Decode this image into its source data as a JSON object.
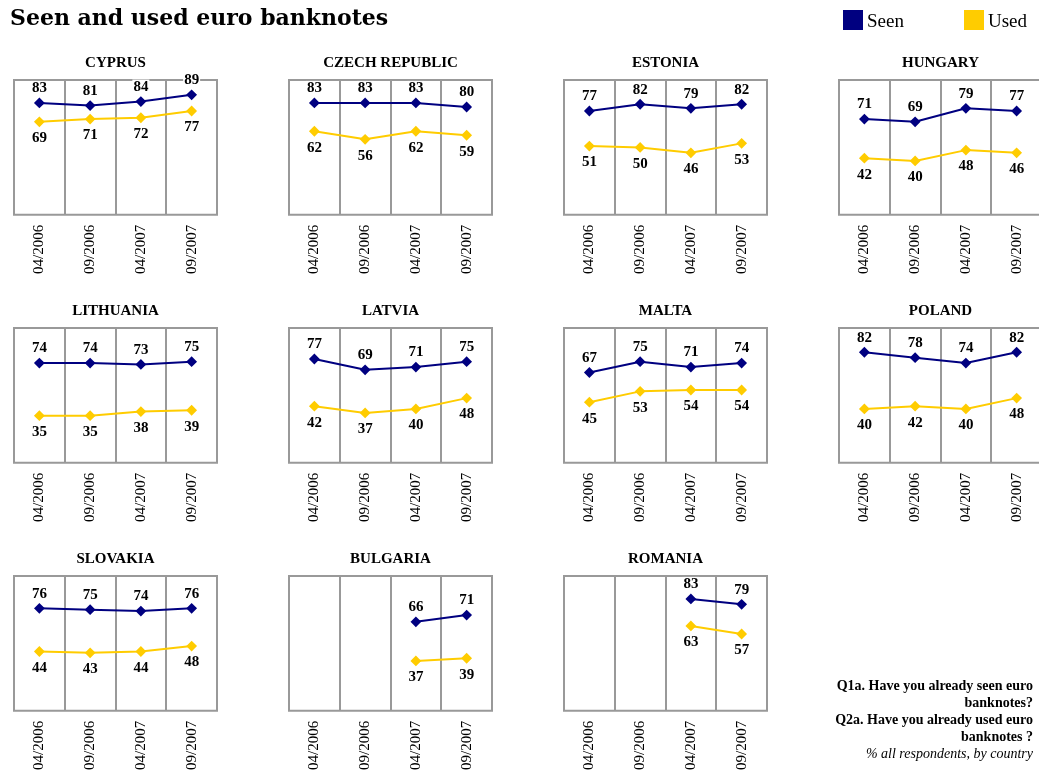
{
  "chart_data": [
    {
      "type": "other",
      "title": "Seen and used euro banknotes",
      "annotations": [
        "Q1a. Have you already seen euro banknotes?",
        "Q2a. Have you already used euro banknotes ?",
        "% all respondents, by country"
      ]
    },
    {
      "type": "line",
      "title": "CYPRUS",
      "categories": [
        "04/2006",
        "09/2006",
        "04/2007",
        "09/2007"
      ],
      "ylim": [
        0,
        100
      ],
      "tick_labels": "x",
      "grid": "x",
      "marker": "diamond",
      "data_labels": true,
      "legend": "top right",
      "series": [
        {
          "name": "Seen",
          "color": "#000080",
          "values": [
            83,
            81,
            84,
            89
          ]
        },
        {
          "name": "Used",
          "color": "#ffcc00",
          "values": [
            69,
            71,
            72,
            77
          ]
        }
      ]
    },
    {
      "type": "line",
      "title": "CZECH REPUBLIC",
      "categories": [
        "04/2006",
        "09/2006",
        "04/2007",
        "09/2007"
      ],
      "ylim": [
        0,
        100
      ],
      "tick_labels": "x",
      "grid": "x",
      "marker": "diamond",
      "data_labels": true,
      "series": [
        {
          "color": "#000080",
          "values": [
            83,
            83,
            83,
            80
          ]
        },
        {
          "color": "#ffcc00",
          "values": [
            62,
            56,
            62,
            59
          ]
        }
      ]
    },
    {
      "type": "line",
      "title": "ESTONIA",
      "categories": [
        "04/2006",
        "09/2006",
        "04/2007",
        "09/2007"
      ],
      "ylim": [
        0,
        100
      ],
      "tick_labels": "x",
      "grid": "x",
      "marker": "diamond",
      "data_labels": true,
      "series": [
        {
          "color": "#000080",
          "values": [
            77,
            82,
            79,
            82
          ]
        },
        {
          "color": "#ffcc00",
          "values": [
            51,
            50,
            46,
            53
          ]
        }
      ]
    },
    {
      "type": "line",
      "title": "HUNGARY",
      "categories": [
        "04/2006",
        "09/2006",
        "04/2007",
        "09/2007"
      ],
      "ylim": [
        0,
        100
      ],
      "tick_labels": "x",
      "grid": "x",
      "marker": "diamond",
      "data_labels": true,
      "series": [
        {
          "color": "#000080",
          "values": [
            71,
            69,
            79,
            77
          ]
        },
        {
          "color": "#ffcc00",
          "values": [
            42,
            40,
            48,
            46
          ]
        }
      ]
    },
    {
      "type": "line",
      "title": "LITHUANIA",
      "categories": [
        "04/2006",
        "09/2006",
        "04/2007",
        "09/2007"
      ],
      "ylim": [
        0,
        100
      ],
      "tick_labels": "x",
      "grid": "x",
      "marker": "diamond",
      "data_labels": true,
      "series": [
        {
          "color": "#000080",
          "values": [
            74,
            74,
            73,
            75
          ]
        },
        {
          "color": "#ffcc00",
          "values": [
            35,
            35,
            38,
            39
          ]
        }
      ]
    },
    {
      "type": "line",
      "title": "LATVIA",
      "categories": [
        "04/2006",
        "09/2006",
        "04/2007",
        "09/2007"
      ],
      "ylim": [
        0,
        100
      ],
      "tick_labels": "x",
      "grid": "x",
      "marker": "diamond",
      "data_labels": true,
      "series": [
        {
          "color": "#000080",
          "values": [
            77,
            69,
            71,
            75
          ]
        },
        {
          "color": "#ffcc00",
          "values": [
            42,
            37,
            40,
            48
          ]
        }
      ]
    },
    {
      "type": "line",
      "title": "MALTA",
      "categories": [
        "04/2006",
        "09/2006",
        "04/2007",
        "09/2007"
      ],
      "ylim": [
        0,
        100
      ],
      "tick_labels": "x",
      "grid": "x",
      "marker": "diamond",
      "data_labels": true,
      "series": [
        {
          "color": "#000080",
          "values": [
            67,
            75,
            71,
            74
          ]
        },
        {
          "color": "#ffcc00",
          "values": [
            45,
            53,
            54,
            54
          ]
        }
      ]
    },
    {
      "type": "line",
      "title": "POLAND",
      "categories": [
        "04/2006",
        "09/2006",
        "04/2007",
        "09/2007"
      ],
      "ylim": [
        0,
        100
      ],
      "tick_labels": "x",
      "grid": "x",
      "marker": "diamond",
      "data_labels": true,
      "series": [
        {
          "color": "#000080",
          "values": [
            82,
            78,
            74,
            82
          ]
        },
        {
          "color": "#ffcc00",
          "values": [
            40,
            42,
            40,
            48
          ]
        }
      ]
    },
    {
      "type": "line",
      "title": "SLOVAKIA",
      "categories": [
        "04/2006",
        "09/2006",
        "04/2007",
        "09/2007"
      ],
      "ylim": [
        0,
        100
      ],
      "tick_labels": "x",
      "grid": "x",
      "marker": "diamond",
      "data_labels": true,
      "series": [
        {
          "color": "#000080",
          "values": [
            76,
            75,
            74,
            76
          ]
        },
        {
          "color": "#ffcc00",
          "values": [
            44,
            43,
            44,
            48
          ]
        }
      ]
    },
    {
      "type": "line",
      "title": "BULGARIA",
      "categories": [
        "04/2006",
        "09/2006",
        "04/2007",
        "09/2007"
      ],
      "ylim": [
        0,
        100
      ],
      "tick_labels": "x",
      "grid": "x",
      "marker": "diamond",
      "data_labels": true,
      "series": [
        {
          "color": "#000080",
          "values": [
            null,
            null,
            66,
            71
          ]
        },
        {
          "color": "#ffcc00",
          "values": [
            null,
            null,
            37,
            39
          ]
        }
      ]
    },
    {
      "type": "line",
      "title": "ROMANIA",
      "categories": [
        "04/2006",
        "09/2006",
        "04/2007",
        "09/2007"
      ],
      "ylim": [
        0,
        100
      ],
      "tick_labels": "x",
      "grid": "x",
      "marker": "diamond",
      "data_labels": true,
      "series": [
        {
          "color": "#000080",
          "values": [
            null,
            null,
            83,
            79
          ]
        },
        {
          "color": "#ffcc00",
          "values": [
            null,
            null,
            63,
            57
          ]
        }
      ]
    }
  ]
}
